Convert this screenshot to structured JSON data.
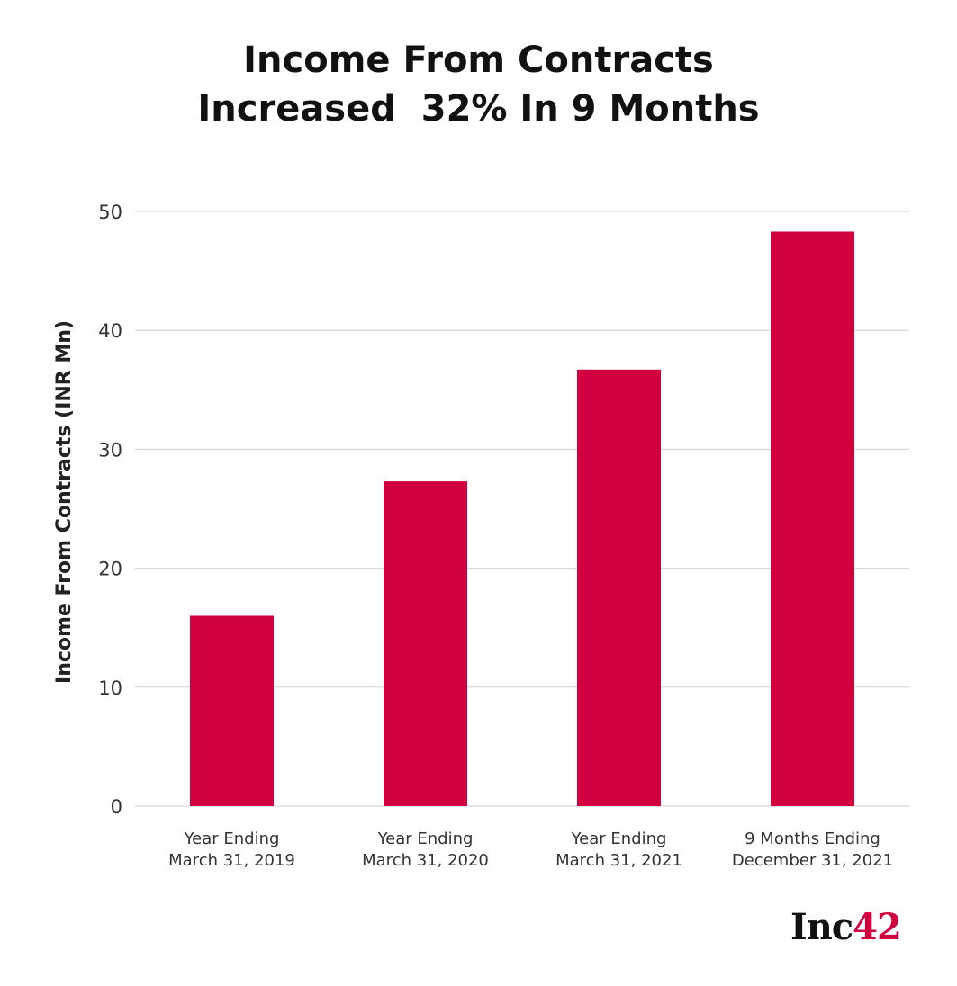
{
  "chart_data": {
    "type": "bar",
    "title": "Income From Contracts\nIncreased  32% In 9 Months",
    "ylabel": "Income From Contracts (INR Mn)",
    "xlabel": "",
    "ylim": [
      0,
      50
    ],
    "yticks": [
      0,
      10,
      20,
      30,
      40,
      50
    ],
    "categories": [
      [
        "Year Ending",
        "March 31, 2019"
      ],
      [
        "Year Ending",
        "March 31, 2020"
      ],
      [
        "Year Ending",
        "March 31, 2021"
      ],
      [
        "9 Months Ending",
        "December 31, 2021"
      ]
    ],
    "values": [
      16.0,
      27.3,
      36.7,
      48.3
    ],
    "bar_color": "#d1003f",
    "grid": true
  },
  "brand": {
    "prefix": "Inc",
    "accent": "42",
    "accent_color": "#d1003f"
  }
}
